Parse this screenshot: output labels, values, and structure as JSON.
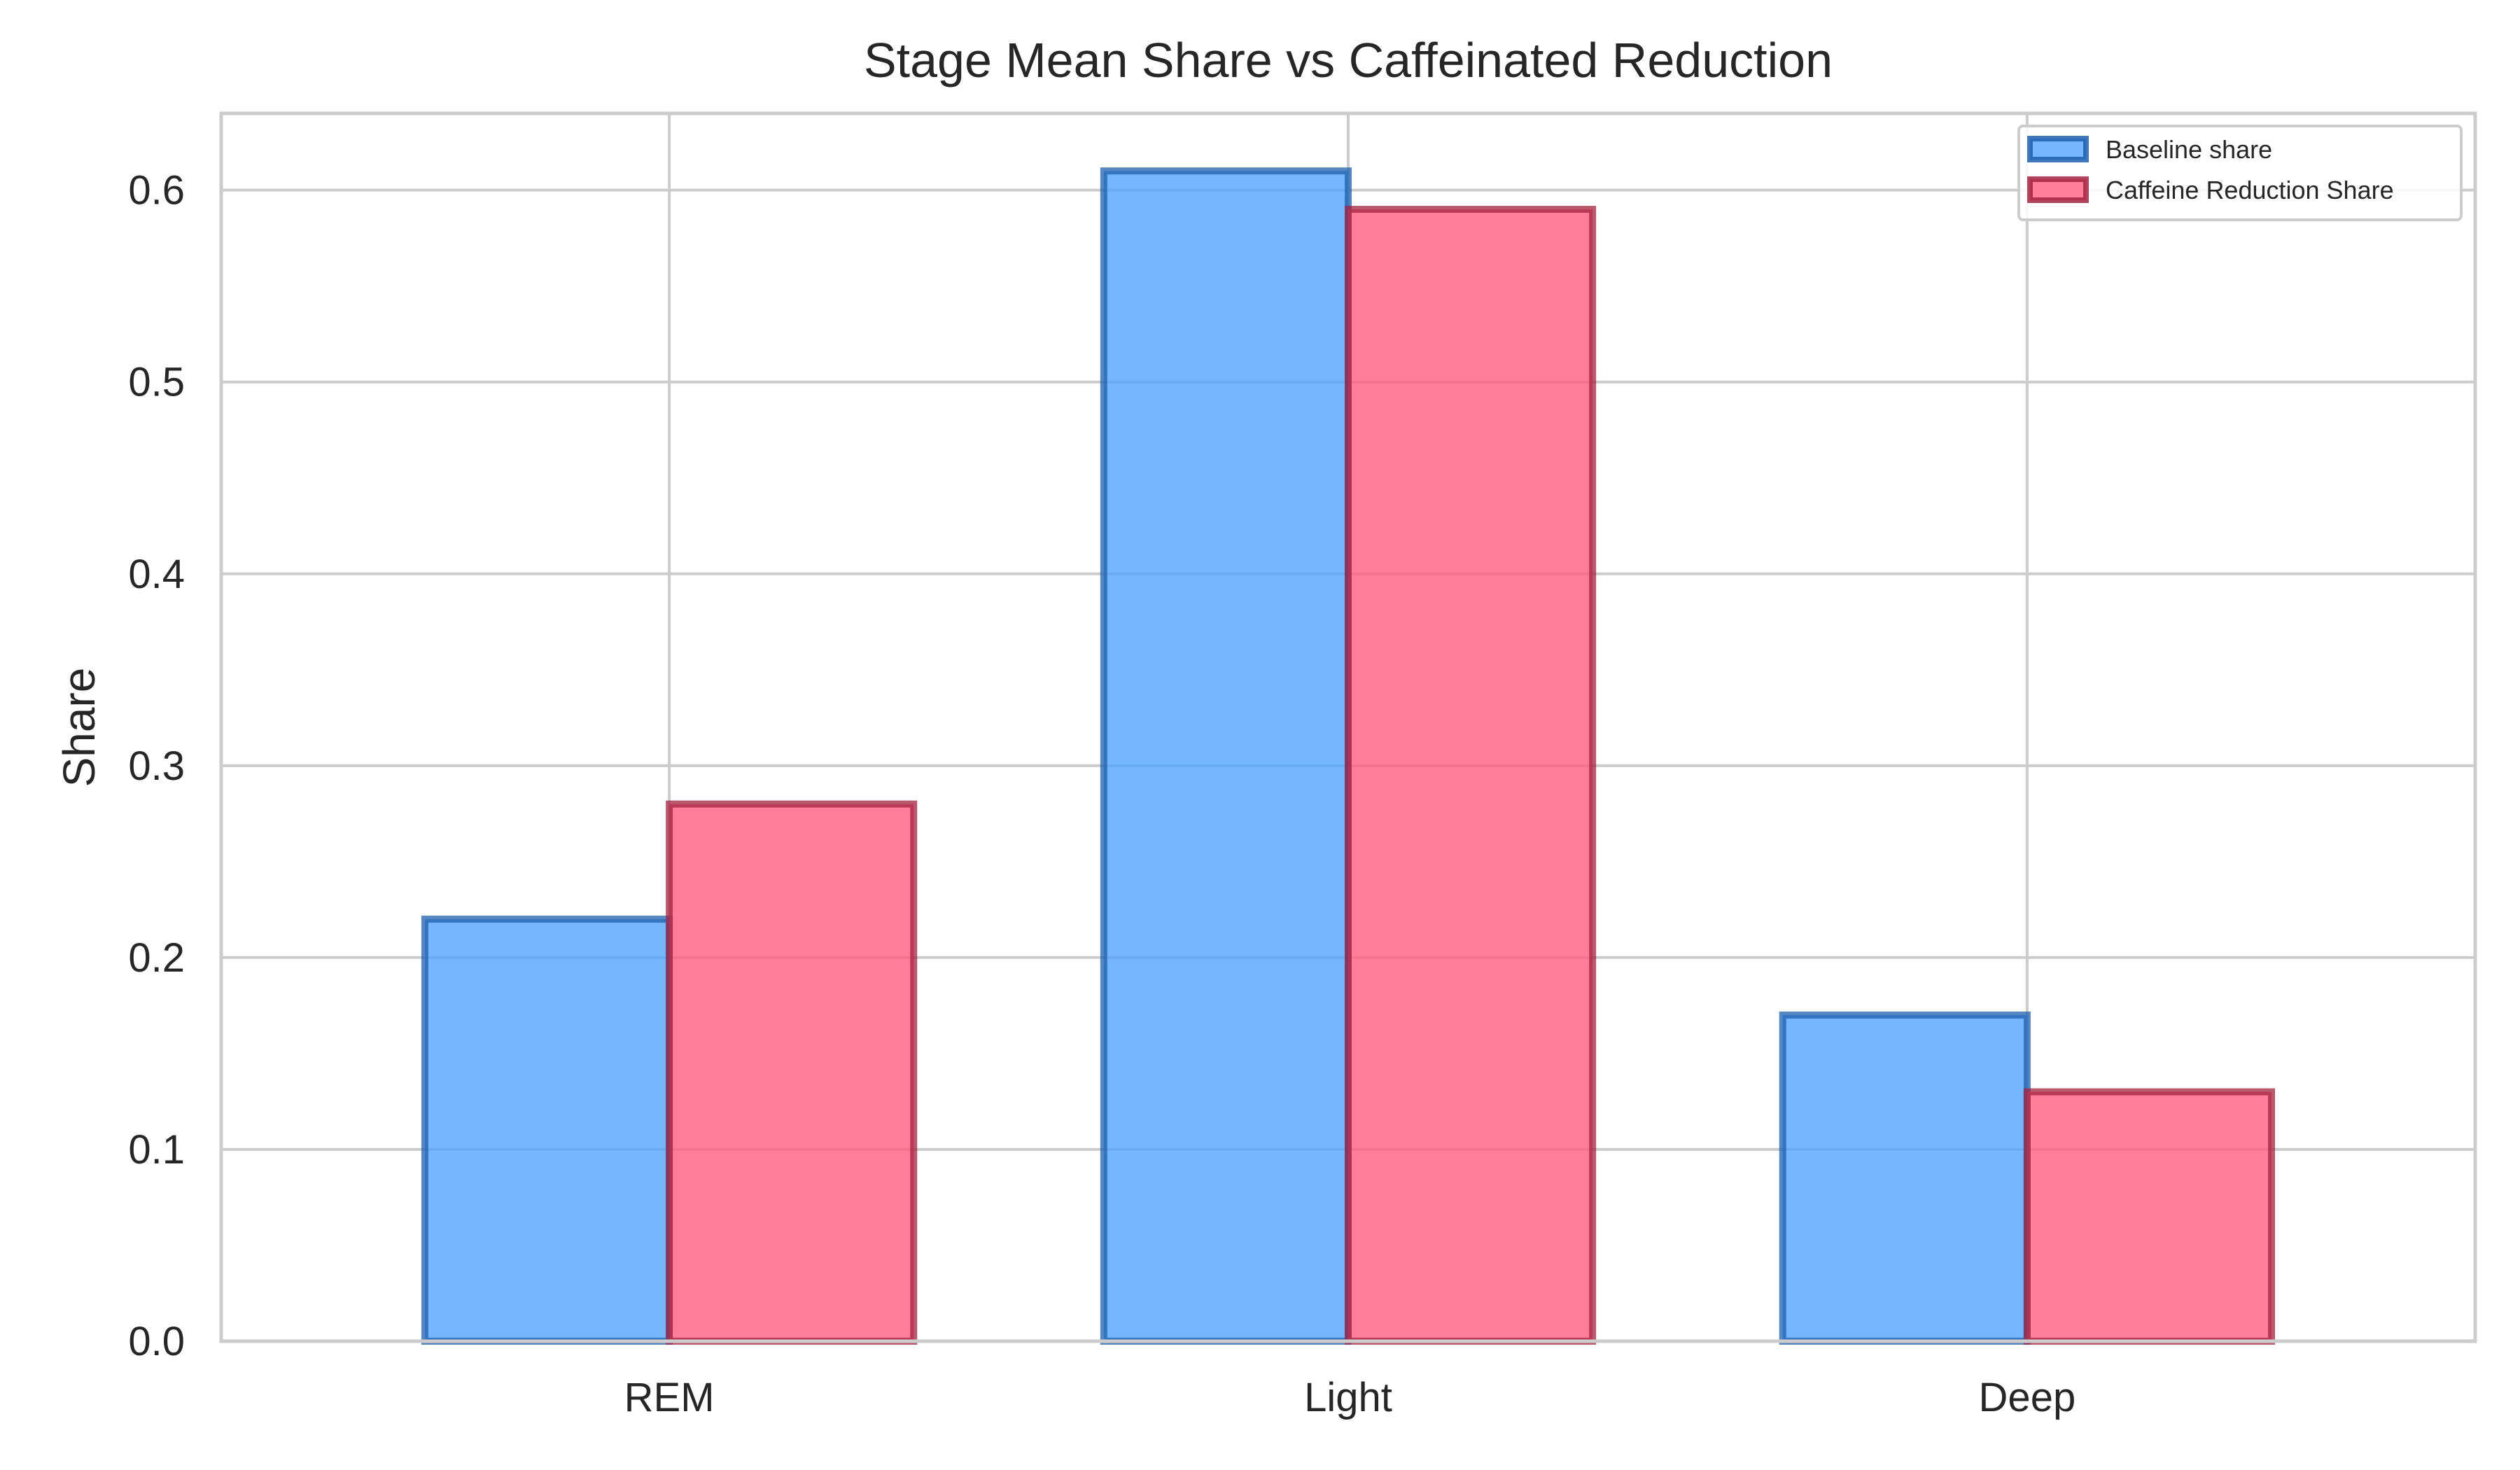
{
  "chart_data": {
    "type": "bar",
    "title": "Stage Mean Share vs Caffeinated Reduction",
    "xlabel": "",
    "ylabel": "Share",
    "categories": [
      "REM",
      "Light",
      "Deep"
    ],
    "ylim": [
      0,
      0.64
    ],
    "yticks": [
      "0.0",
      "0.1",
      "0.2",
      "0.3",
      "0.4",
      "0.5",
      "0.6"
    ],
    "grid": true,
    "legend_position": "top-right",
    "series": [
      {
        "name": "Baseline share",
        "values": [
          0.22,
          0.61,
          0.17
        ],
        "fill_color": "#4da3ff",
        "edge_color": "#1f5fae"
      },
      {
        "name": "Caffeine Reduction Share",
        "values": [
          0.28,
          0.59,
          0.13
        ],
        "fill_color": "#ff5a7d",
        "edge_color": "#a3233f"
      }
    ]
  }
}
